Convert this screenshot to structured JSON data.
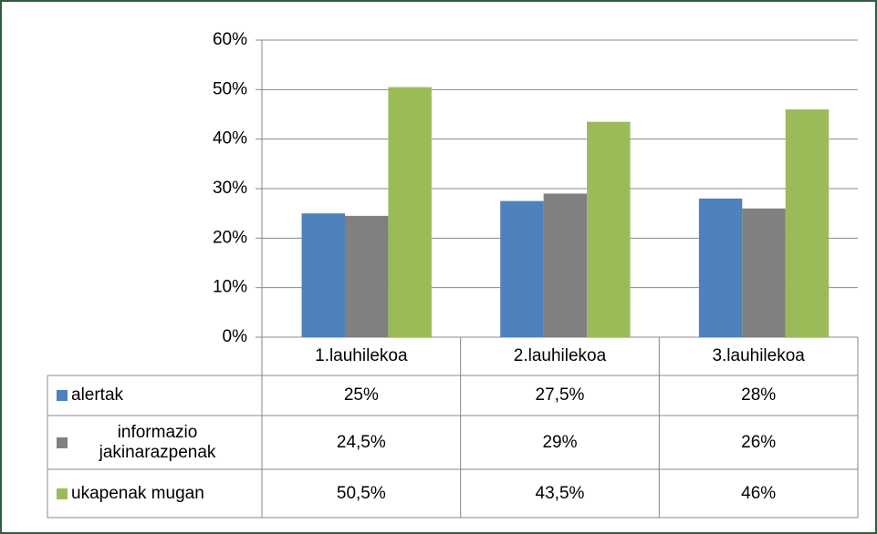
{
  "chart_data": {
    "type": "bar",
    "categories": [
      "1.lauhilekoa",
      "2.lauhilekoa",
      "3.lauhilekoa"
    ],
    "series": [
      {
        "name": "alertak",
        "color": "#4f81bd",
        "values": [
          25,
          27.5,
          28
        ],
        "value_labels": [
          "25%",
          "27,5%",
          "28%"
        ]
      },
      {
        "name": "informazio jakinarazpenak",
        "color": "#808080",
        "values": [
          24.5,
          29,
          26
        ],
        "value_labels": [
          "24,5%",
          "29%",
          "26%"
        ]
      },
      {
        "name": "ukapenak mugan",
        "color": "#9bbb59",
        "values": [
          50.5,
          43.5,
          46
        ],
        "value_labels": [
          "50,5%",
          "43,5%",
          "46%"
        ]
      }
    ],
    "ylim": [
      0,
      60
    ],
    "yticks": [
      {
        "value": 0,
        "label": "0%"
      },
      {
        "value": 10,
        "label": "10%"
      },
      {
        "value": 20,
        "label": "20%"
      },
      {
        "value": 30,
        "label": "30%"
      },
      {
        "value": 40,
        "label": "40%"
      },
      {
        "value": 50,
        "label": "50%"
      },
      {
        "value": 60,
        "label": "60%"
      }
    ],
    "grid": true
  }
}
